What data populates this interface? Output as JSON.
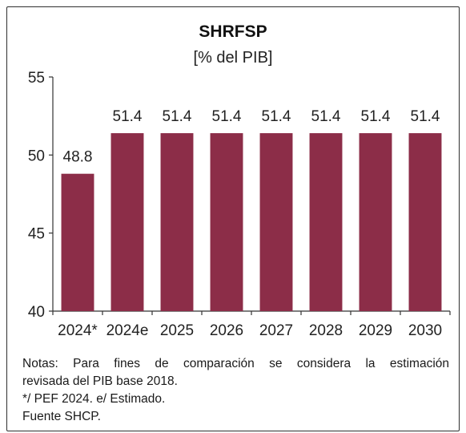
{
  "chart_data": {
    "type": "bar",
    "title": "SHRFSP",
    "subtitle": "[% del PIB]",
    "categories": [
      "2024*",
      "2024e",
      "2025",
      "2026",
      "2027",
      "2028",
      "2029",
      "2030"
    ],
    "values": [
      48.8,
      51.4,
      51.4,
      51.4,
      51.4,
      51.4,
      51.4,
      51.4
    ],
    "data_labels": [
      "48.8",
      "51.4",
      "51.4",
      "51.4",
      "51.4",
      "51.4",
      "51.4",
      "51.4"
    ],
    "ylim": [
      40,
      55
    ],
    "yticks": [
      40,
      45,
      50,
      55
    ],
    "grid": false,
    "legend": "none",
    "bar_color": "#8c2d48"
  },
  "notes": {
    "line1": "Notas: Para fines de comparación se considera la estimación",
    "line2": "revisada del PIB base 2018.",
    "line3": "*/ PEF 2024. e/ Estimado.",
    "line4": "Fuente SHCP."
  }
}
